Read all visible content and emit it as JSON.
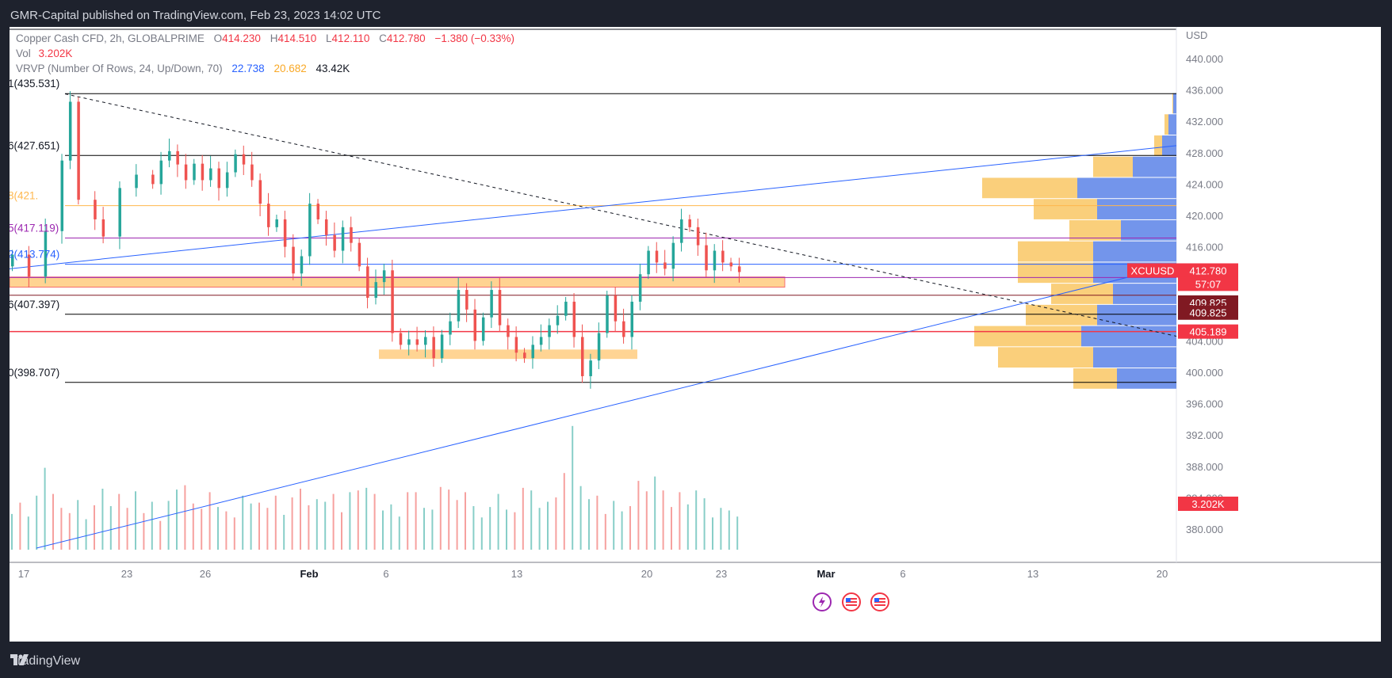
{
  "header": {
    "publisher_line": "GMR-Capital published on TradingView.com, Feb 23, 2023 14:02 UTC"
  },
  "footer": {
    "brand": "TradingView"
  },
  "legend": {
    "symbol": "Copper Cash CFD, 2h, GLOBALPRIME",
    "o_label": "O",
    "o": "414.230",
    "h_label": "H",
    "h": "414.510",
    "l_label": "L",
    "l": "412.110",
    "c_label": "C",
    "c": "412.780",
    "change": "−1.380 (−0.33%)",
    "vol_label": "Vol",
    "vol": "3.202K",
    "vrvp_label": "VRVP (Number Of Rows, 24, Up/Down, 70)",
    "vrvp_up": "22.738",
    "vrvp_down": "20.682",
    "vrvp_total": "43.42K"
  },
  "colors": {
    "up": "#26a69a",
    "down": "#ef5350",
    "fib_line": "#000000",
    "fib_orange": "#ffb74d",
    "fib_purple": "#9c27b0",
    "trend_blue": "#2962ff",
    "zone": "#ffcc80",
    "price_red": "#f23645",
    "dark_red": "#801922",
    "vp_up": "#5b83e8",
    "vp_down": "#f9c764"
  },
  "chart_data": {
    "type": "candlestick",
    "currency": "USD",
    "y_range": [
      377.6,
      442.7
    ],
    "y_ticks": [
      "440.000",
      "436.000",
      "432.000",
      "428.000",
      "424.000",
      "420.000",
      "416.000",
      "412.000",
      "408.000",
      "404.000",
      "400.000",
      "396.000",
      "392.000",
      "388.000",
      "384.000",
      "380.000"
    ],
    "x_ticks": [
      "17",
      "23",
      "26",
      "Feb",
      "6",
      "13",
      "20",
      "23",
      "Mar",
      "6",
      "13",
      "20"
    ],
    "fib_levels": [
      {
        "label": "1(435.531)",
        "price": 435.531,
        "color": "#000000"
      },
      {
        "label": "6(427.651)",
        "price": 427.651,
        "color": "#000000"
      },
      {
        "label": "8(421.",
        "price": 421.25,
        "color": "#ffb74d"
      },
      {
        "label": "5(417.119)",
        "price": 417.119,
        "color": "#9c27b0"
      },
      {
        "label": "2(413.774)",
        "price": 413.774,
        "color": "#2962ff"
      },
      {
        "label": "6(407.397)",
        "price": 407.397,
        "color": "#000000"
      },
      {
        "label": "0(398.707)",
        "price": 398.707,
        "color": "#000000"
      }
    ],
    "horizontal_lines": [
      {
        "price": 412.08,
        "color": "#9c27b0"
      },
      {
        "price": 409.825,
        "color": "#801922"
      },
      {
        "price": 405.189,
        "color": "#f23645"
      }
    ],
    "zones": [
      {
        "from": 410.85,
        "to": 412.15
      },
      {
        "from": 401.7,
        "to": 402.9
      }
    ],
    "price_labels": [
      {
        "text": "XCUUSD",
        "price": 412.78,
        "color": "#f23645"
      },
      {
        "text": "412.780",
        "price": 412.78,
        "color": "#f23645"
      },
      {
        "text": "57:07",
        "price": 411.48,
        "color": "#f23645"
      },
      {
        "text": "409.825",
        "price": 409.3,
        "color": "#801922"
      },
      {
        "text": "409.825",
        "price": 407.4,
        "color": "#801922"
      },
      {
        "text": "405.189",
        "price": 405.189,
        "color": "#f23645"
      }
    ],
    "volume_label": "3.202K",
    "price_series": [
      {
        "t": 0,
        "p": 415.0
      },
      {
        "t": 2,
        "p": 412.2
      },
      {
        "t": 4,
        "p": 418.0
      },
      {
        "t": 6,
        "p": 427.0
      },
      {
        "t": 7,
        "p": 434.5
      },
      {
        "t": 8,
        "p": 422.0
      },
      {
        "t": 10,
        "p": 419.5
      },
      {
        "t": 11,
        "p": 417.3
      },
      {
        "t": 13,
        "p": 423.5
      },
      {
        "t": 15,
        "p": 425.2
      },
      {
        "t": 17,
        "p": 424.0
      },
      {
        "t": 18,
        "p": 427.0
      },
      {
        "t": 19,
        "p": 428.2
      },
      {
        "t": 20,
        "p": 426.5
      },
      {
        "t": 21,
        "p": 424.5
      },
      {
        "t": 22,
        "p": 426.6
      },
      {
        "t": 23,
        "p": 424.5
      },
      {
        "t": 24,
        "p": 426.0
      },
      {
        "t": 25,
        "p": 423.5
      },
      {
        "t": 26,
        "p": 425.5
      },
      {
        "t": 27,
        "p": 427.8
      },
      {
        "t": 28,
        "p": 426.5
      },
      {
        "t": 29,
        "p": 424.5
      },
      {
        "t": 30,
        "p": 421.5
      },
      {
        "t": 31,
        "p": 418.5
      },
      {
        "t": 32,
        "p": 419.5
      },
      {
        "t": 33,
        "p": 416.0
      },
      {
        "t": 34,
        "p": 412.6
      },
      {
        "t": 35,
        "p": 414.8
      },
      {
        "t": 36,
        "p": 421.5
      },
      {
        "t": 37,
        "p": 419.5
      },
      {
        "t": 38,
        "p": 417.5
      },
      {
        "t": 39,
        "p": 415.5
      },
      {
        "t": 40,
        "p": 418.5
      },
      {
        "t": 41,
        "p": 416.5
      },
      {
        "t": 42,
        "p": 413.5
      },
      {
        "t": 43,
        "p": 409.5
      },
      {
        "t": 44,
        "p": 411.5
      },
      {
        "t": 45,
        "p": 413.0
      },
      {
        "t": 46,
        "p": 405.0
      },
      {
        "t": 47,
        "p": 403.5
      },
      {
        "t": 48,
        "p": 404.2
      },
      {
        "t": 49,
        "p": 403.5
      },
      {
        "t": 50,
        "p": 404.5
      },
      {
        "t": 51,
        "p": 401.8
      },
      {
        "t": 52,
        "p": 404.8
      },
      {
        "t": 53,
        "p": 406.5
      },
      {
        "t": 54,
        "p": 410.5
      },
      {
        "t": 55,
        "p": 408.0
      },
      {
        "t": 56,
        "p": 404.0
      },
      {
        "t": 57,
        "p": 407.0
      },
      {
        "t": 58,
        "p": 410.5
      },
      {
        "t": 59,
        "p": 406.0
      },
      {
        "t": 60,
        "p": 404.5
      },
      {
        "t": 61,
        "p": 402.5
      },
      {
        "t": 62,
        "p": 401.8
      },
      {
        "t": 63,
        "p": 403.5
      },
      {
        "t": 64,
        "p": 404.5
      },
      {
        "t": 65,
        "p": 406.0
      },
      {
        "t": 66,
        "p": 407.2
      },
      {
        "t": 67,
        "p": 409.0
      },
      {
        "t": 68,
        "p": 404.5
      },
      {
        "t": 69,
        "p": 399.5
      },
      {
        "t": 70,
        "p": 401.5
      },
      {
        "t": 71,
        "p": 405.0
      },
      {
        "t": 72,
        "p": 409.8
      },
      {
        "t": 73,
        "p": 406.5
      },
      {
        "t": 74,
        "p": 404.5
      },
      {
        "t": 75,
        "p": 409.0
      },
      {
        "t": 76,
        "p": 412.5
      },
      {
        "t": 77,
        "p": 415.5
      },
      {
        "t": 78,
        "p": 414.0
      },
      {
        "t": 79,
        "p": 413.2
      },
      {
        "t": 80,
        "p": 416.5
      },
      {
        "t": 81,
        "p": 419.5
      },
      {
        "t": 82,
        "p": 418.5
      },
      {
        "t": 83,
        "p": 416.2
      },
      {
        "t": 84,
        "p": 413.0
      },
      {
        "t": 85,
        "p": 415.5
      },
      {
        "t": 86,
        "p": 414.0
      },
      {
        "t": 87,
        "p": 413.5
      },
      {
        "t": 88,
        "p": 412.78
      }
    ],
    "volume_series": [
      41,
      54,
      38,
      62,
      94,
      64,
      48,
      42,
      57,
      35,
      51,
      70,
      50,
      64,
      48,
      67,
      42,
      55,
      33,
      56,
      69,
      74,
      53,
      47,
      66,
      49,
      44,
      37,
      62,
      53,
      54,
      48,
      62,
      40,
      60,
      70,
      51,
      58,
      55,
      64,
      43,
      66,
      68,
      71,
      64,
      45,
      52,
      38,
      66,
      66,
      48,
      46,
      72,
      69,
      57,
      66,
      50,
      37,
      49,
      64,
      46,
      43,
      71,
      68,
      48,
      55,
      60,
      88,
      142,
      73,
      58,
      62,
      41,
      56,
      44,
      50,
      79,
      67,
      84,
      68,
      49,
      66,
      52,
      68,
      59,
      37,
      48,
      45,
      38
    ],
    "volume_profile": [
      {
        "price_from": 432.9,
        "price_to": 435.6,
        "up": 4,
        "down": 1
      },
      {
        "price_from": 430.2,
        "price_to": 432.9,
        "up": 10,
        "down": 5
      },
      {
        "price_from": 427.5,
        "price_to": 430.2,
        "up": 18,
        "down": 10
      },
      {
        "price_from": 424.8,
        "price_to": 427.5,
        "up": 55,
        "down": 50
      },
      {
        "price_from": 422.1,
        "price_to": 424.8,
        "up": 125,
        "down": 120
      },
      {
        "price_from": 419.4,
        "price_to": 422.1,
        "up": 100,
        "down": 80
      },
      {
        "price_from": 416.7,
        "price_to": 419.4,
        "up": 70,
        "down": 65
      },
      {
        "price_from": 414.0,
        "price_to": 416.7,
        "up": 105,
        "down": 95
      },
      {
        "price_from": 411.3,
        "price_to": 414.0,
        "up": 105,
        "down": 95
      },
      {
        "price_from": 408.6,
        "price_to": 411.3,
        "up": 80,
        "down": 78
      },
      {
        "price_from": 405.9,
        "price_to": 408.6,
        "up": 100,
        "down": 90
      },
      {
        "price_from": 403.2,
        "price_to": 405.9,
        "up": 120,
        "down": 135
      },
      {
        "price_from": 400.5,
        "price_to": 403.2,
        "up": 105,
        "down": 120
      },
      {
        "price_from": 397.8,
        "price_to": 400.5,
        "up": 75,
        "down": 55
      }
    ]
  }
}
